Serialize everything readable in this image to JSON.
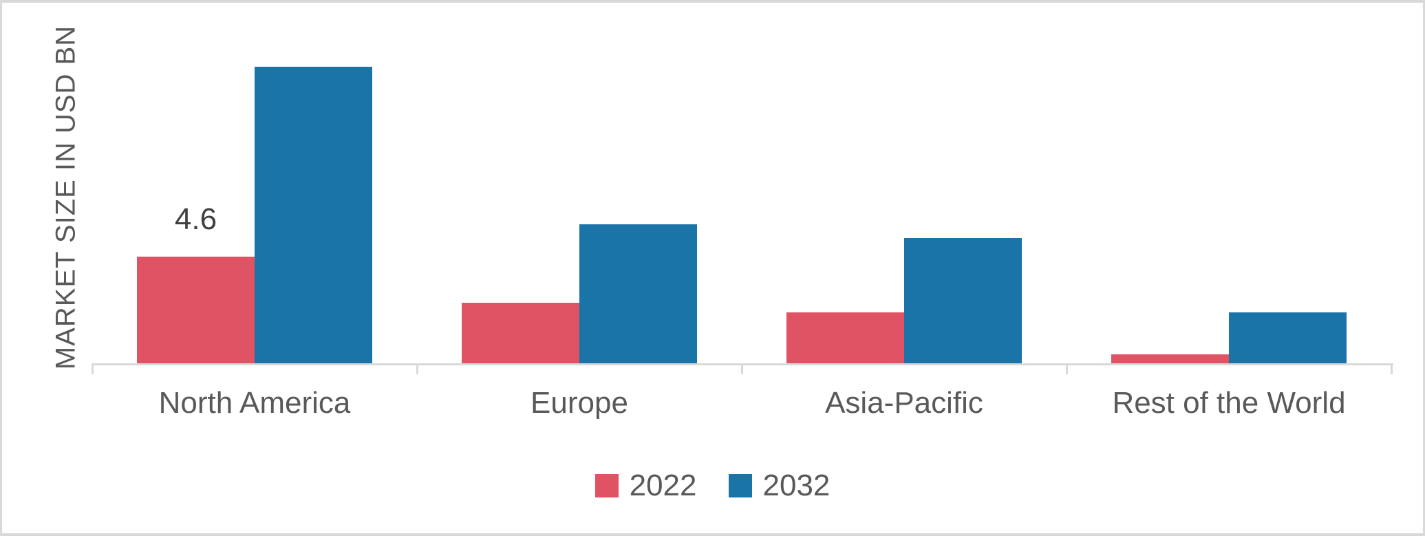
{
  "chart_data": {
    "type": "bar",
    "title": "",
    "xlabel": "",
    "ylabel": "MARKET SIZE IN USD BN",
    "categories": [
      "North America",
      "Europe",
      "Asia-Pacific",
      "Rest of the World"
    ],
    "series": [
      {
        "name": "2022",
        "color": "#e05365",
        "values": [
          4.6,
          2.6,
          2.2,
          0.4
        ],
        "labels": [
          "4.6",
          "",
          "",
          ""
        ]
      },
      {
        "name": "2032",
        "color": "#1b74a8",
        "values": [
          12.8,
          6.0,
          5.4,
          2.2
        ],
        "labels": [
          "",
          "",
          "",
          ""
        ]
      }
    ],
    "ylim": [
      0,
      14
    ],
    "grid": false,
    "legend_position": "bottom",
    "colors": {
      "axis": "#d9d9d9",
      "frame_border": "#d9d9d9",
      "category_label": "#595959",
      "data_label": "#3f3f3f",
      "legend_label": "#595959",
      "y_axis_title": "#595959"
    }
  }
}
